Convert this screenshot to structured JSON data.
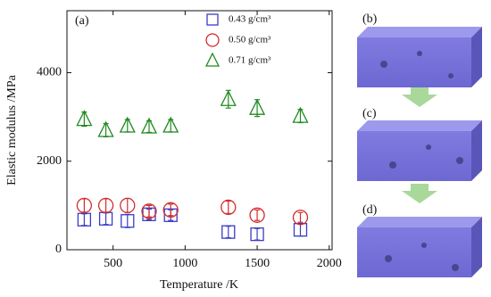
{
  "chart_data": {
    "type": "scatter",
    "annotation": "(a)",
    "x_label": "Temperature /K",
    "y_label": "Elastic modulus /MPa",
    "x": [
      300,
      450,
      600,
      750,
      900,
      1300,
      1500,
      1800
    ],
    "series": [
      {
        "name": "0.43 g/cm³",
        "color": "#3b3bc8",
        "marker": "square",
        "values": [
          680,
          700,
          650,
          800,
          780,
          400,
          350,
          450
        ],
        "errors": [
          130,
          130,
          150,
          120,
          120,
          130,
          130,
          140
        ]
      },
      {
        "name": "0.50 g/cm³",
        "color": "#d42a2a",
        "marker": "circle",
        "values": [
          1000,
          1000,
          1000,
          870,
          900,
          960,
          780,
          730
        ],
        "errors": [
          150,
          150,
          160,
          130,
          130,
          140,
          120,
          110
        ]
      },
      {
        "name": "0.71 g/cm³",
        "color": "#1e8a1e",
        "marker": "triangle",
        "values": [
          2950,
          2700,
          2800,
          2780,
          2800,
          3400,
          3200,
          3020
        ],
        "errors": [
          160,
          150,
          140,
          130,
          140,
          200,
          190,
          150
        ]
      }
    ],
    "xlim": [
      180,
      2020
    ],
    "xticks": [
      500,
      1000,
      1500,
      2000
    ],
    "ylim": [
      0,
      5400
    ],
    "yticks": [
      0,
      2000,
      4000
    ],
    "legend": "upper right"
  },
  "panels": [
    "(b)",
    "(c)",
    "(d)"
  ]
}
